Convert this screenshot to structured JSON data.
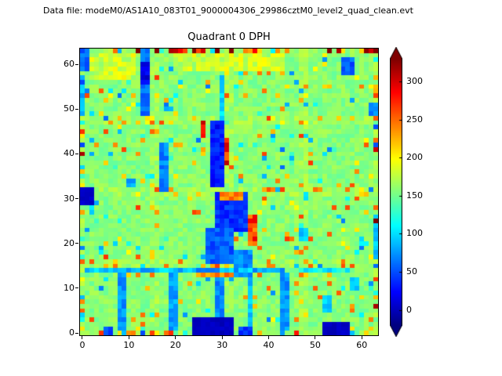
{
  "header": {
    "datafile_label": "Data file: modeM0/AS1A10_083T01_9000004306_29986cztM0_level2_quad_clean.evt"
  },
  "chart_data": {
    "type": "heatmap",
    "title": "Quadrant 0 DPH",
    "grid_size": [
      64,
      64
    ],
    "xlim": [
      -0.5,
      63.5
    ],
    "ylim": [
      -0.5,
      63.5
    ],
    "x_ticks": [
      0,
      10,
      20,
      30,
      40,
      50,
      60
    ],
    "y_ticks": [
      0,
      10,
      20,
      30,
      40,
      50,
      60
    ],
    "colormap": "jet",
    "grid": false,
    "colorbar": {
      "ticks": [
        0,
        50,
        100,
        150,
        200,
        250,
        300
      ],
      "vmin": -20,
      "vmax": 330,
      "extend": "both",
      "position": "right"
    },
    "background": {
      "mean": 158,
      "noise": 26,
      "high_speckle_prob": 0.055,
      "low_speckle_prob": 0.03
    },
    "seed": 42,
    "features": [
      {
        "x": 13,
        "y": 49,
        "w": 2,
        "h": 15,
        "value": 60
      },
      {
        "x": 13,
        "y": 56,
        "w": 2,
        "h": 5,
        "value": 15
      },
      {
        "x": 17,
        "y": 32,
        "w": 2,
        "h": 11,
        "value": 70
      },
      {
        "x": 2,
        "y": 57,
        "w": 10,
        "h": 6,
        "value": 182,
        "j": 45
      },
      {
        "x": 20,
        "y": 59,
        "w": 24,
        "h": 4,
        "value": 180,
        "j": 45
      },
      {
        "x": 28,
        "y": 33,
        "w": 3,
        "h": 15,
        "value": 30
      },
      {
        "x": 30,
        "y": 48,
        "w": 1,
        "h": 10,
        "value": 100
      },
      {
        "x": 29,
        "y": 23,
        "w": 7,
        "h": 9,
        "value": 40
      },
      {
        "x": 27,
        "y": 16,
        "w": 6,
        "h": 8,
        "value": 55
      },
      {
        "x": 33,
        "y": 13,
        "w": 4,
        "h": 6,
        "value": 70
      },
      {
        "x": 36,
        "y": 20,
        "w": 2,
        "h": 7,
        "value": 265,
        "j": 60
      },
      {
        "x": 30,
        "y": 30,
        "w": 5,
        "h": 2,
        "value": 250,
        "j": 60
      },
      {
        "x": 25,
        "y": 13,
        "w": 8,
        "h": 2,
        "value": 235,
        "j": 50
      },
      {
        "x": 26,
        "y": 44,
        "w": 1,
        "h": 4,
        "value": 300,
        "j": 60
      },
      {
        "x": 31,
        "y": 38,
        "w": 1,
        "h": 6,
        "value": 280,
        "j": 60
      },
      {
        "x": 24,
        "y": 0,
        "w": 9,
        "h": 4,
        "value": 2,
        "j": 14
      },
      {
        "x": 34,
        "y": 0,
        "w": 3,
        "h": 2,
        "value": 45
      },
      {
        "x": 52,
        "y": 0,
        "w": 6,
        "h": 3,
        "value": 2,
        "j": 14
      },
      {
        "x": 0,
        "y": 29,
        "w": 3,
        "h": 4,
        "value": 6,
        "j": 14
      },
      {
        "x": 8,
        "y": 1,
        "w": 2,
        "h": 13,
        "value": 75
      },
      {
        "x": 19,
        "y": 1,
        "w": 2,
        "h": 13,
        "value": 80
      },
      {
        "x": 29,
        "y": 4,
        "w": 2,
        "h": 9,
        "value": 70
      },
      {
        "x": 43,
        "y": 1,
        "w": 2,
        "h": 13,
        "value": 75
      },
      {
        "x": 36,
        "y": 2,
        "w": 1,
        "h": 11,
        "value": 90
      },
      {
        "x": 1,
        "y": 14,
        "w": 43,
        "h": 1,
        "value": 85,
        "j": 50
      },
      {
        "x": 47,
        "y": 14,
        "w": 10,
        "h": 1,
        "value": 115,
        "j": 50
      },
      {
        "x": 56,
        "y": 58,
        "w": 3,
        "h": 4,
        "value": 55
      },
      {
        "x": 62,
        "y": 49,
        "w": 2,
        "h": 3,
        "value": 75
      },
      {
        "x": 47,
        "y": 21,
        "w": 2,
        "h": 3,
        "value": 90
      },
      {
        "x": 0,
        "y": 49,
        "w": 1,
        "h": 7,
        "value": 85
      },
      {
        "x": 63,
        "y": 18,
        "w": 1,
        "h": 7,
        "value": 95
      },
      {
        "x": 0,
        "y": 59,
        "w": 2,
        "h": 5,
        "value": 60
      },
      {
        "x": 5,
        "y": 0,
        "w": 2,
        "h": 2,
        "value": 50
      },
      {
        "x": 52,
        "y": 5,
        "w": 2,
        "h": 4,
        "value": 95
      },
      {
        "x": 58,
        "y": 10,
        "w": 2,
        "h": 3,
        "value": 100
      },
      {
        "x": 10,
        "y": 33,
        "w": 2,
        "h": 2,
        "value": 80
      }
    ],
    "colors": {
      "figure_background": "#ffffff",
      "frame": "#000000",
      "text": "#000000"
    }
  }
}
